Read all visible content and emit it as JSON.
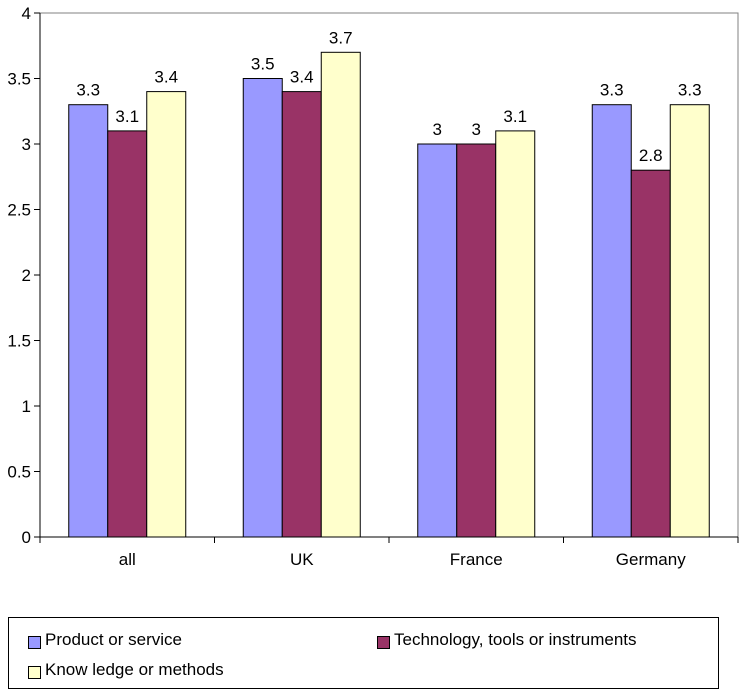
{
  "chart_data": {
    "type": "bar",
    "categories": [
      "all",
      "UK",
      "France",
      "Germany"
    ],
    "series": [
      {
        "name": "Product or service",
        "values": [
          3.3,
          3.5,
          3.0,
          3.3
        ],
        "labels": [
          "3.3",
          "3.5",
          "3",
          "3.3"
        ],
        "color": "#9999FF"
      },
      {
        "name": "Technology, tools or instruments",
        "values": [
          3.1,
          3.4,
          3.0,
          2.8
        ],
        "labels": [
          "3.1",
          "3.4",
          "3",
          "2.8"
        ],
        "color": "#993366"
      },
      {
        "name": "Know ledge or methods",
        "values": [
          3.4,
          3.7,
          3.1,
          3.3
        ],
        "labels": [
          "3.4",
          "3.7",
          "3.1",
          "3.3"
        ],
        "color": "#FFFFCC"
      }
    ],
    "ylim": [
      0,
      4
    ],
    "yticks": [
      "0",
      "0.5",
      "1",
      "1.5",
      "2",
      "2.5",
      "3",
      "3.5",
      "4"
    ],
    "title": "",
    "xlabel": "",
    "ylabel": "",
    "grid": false,
    "legend": "bottom"
  }
}
